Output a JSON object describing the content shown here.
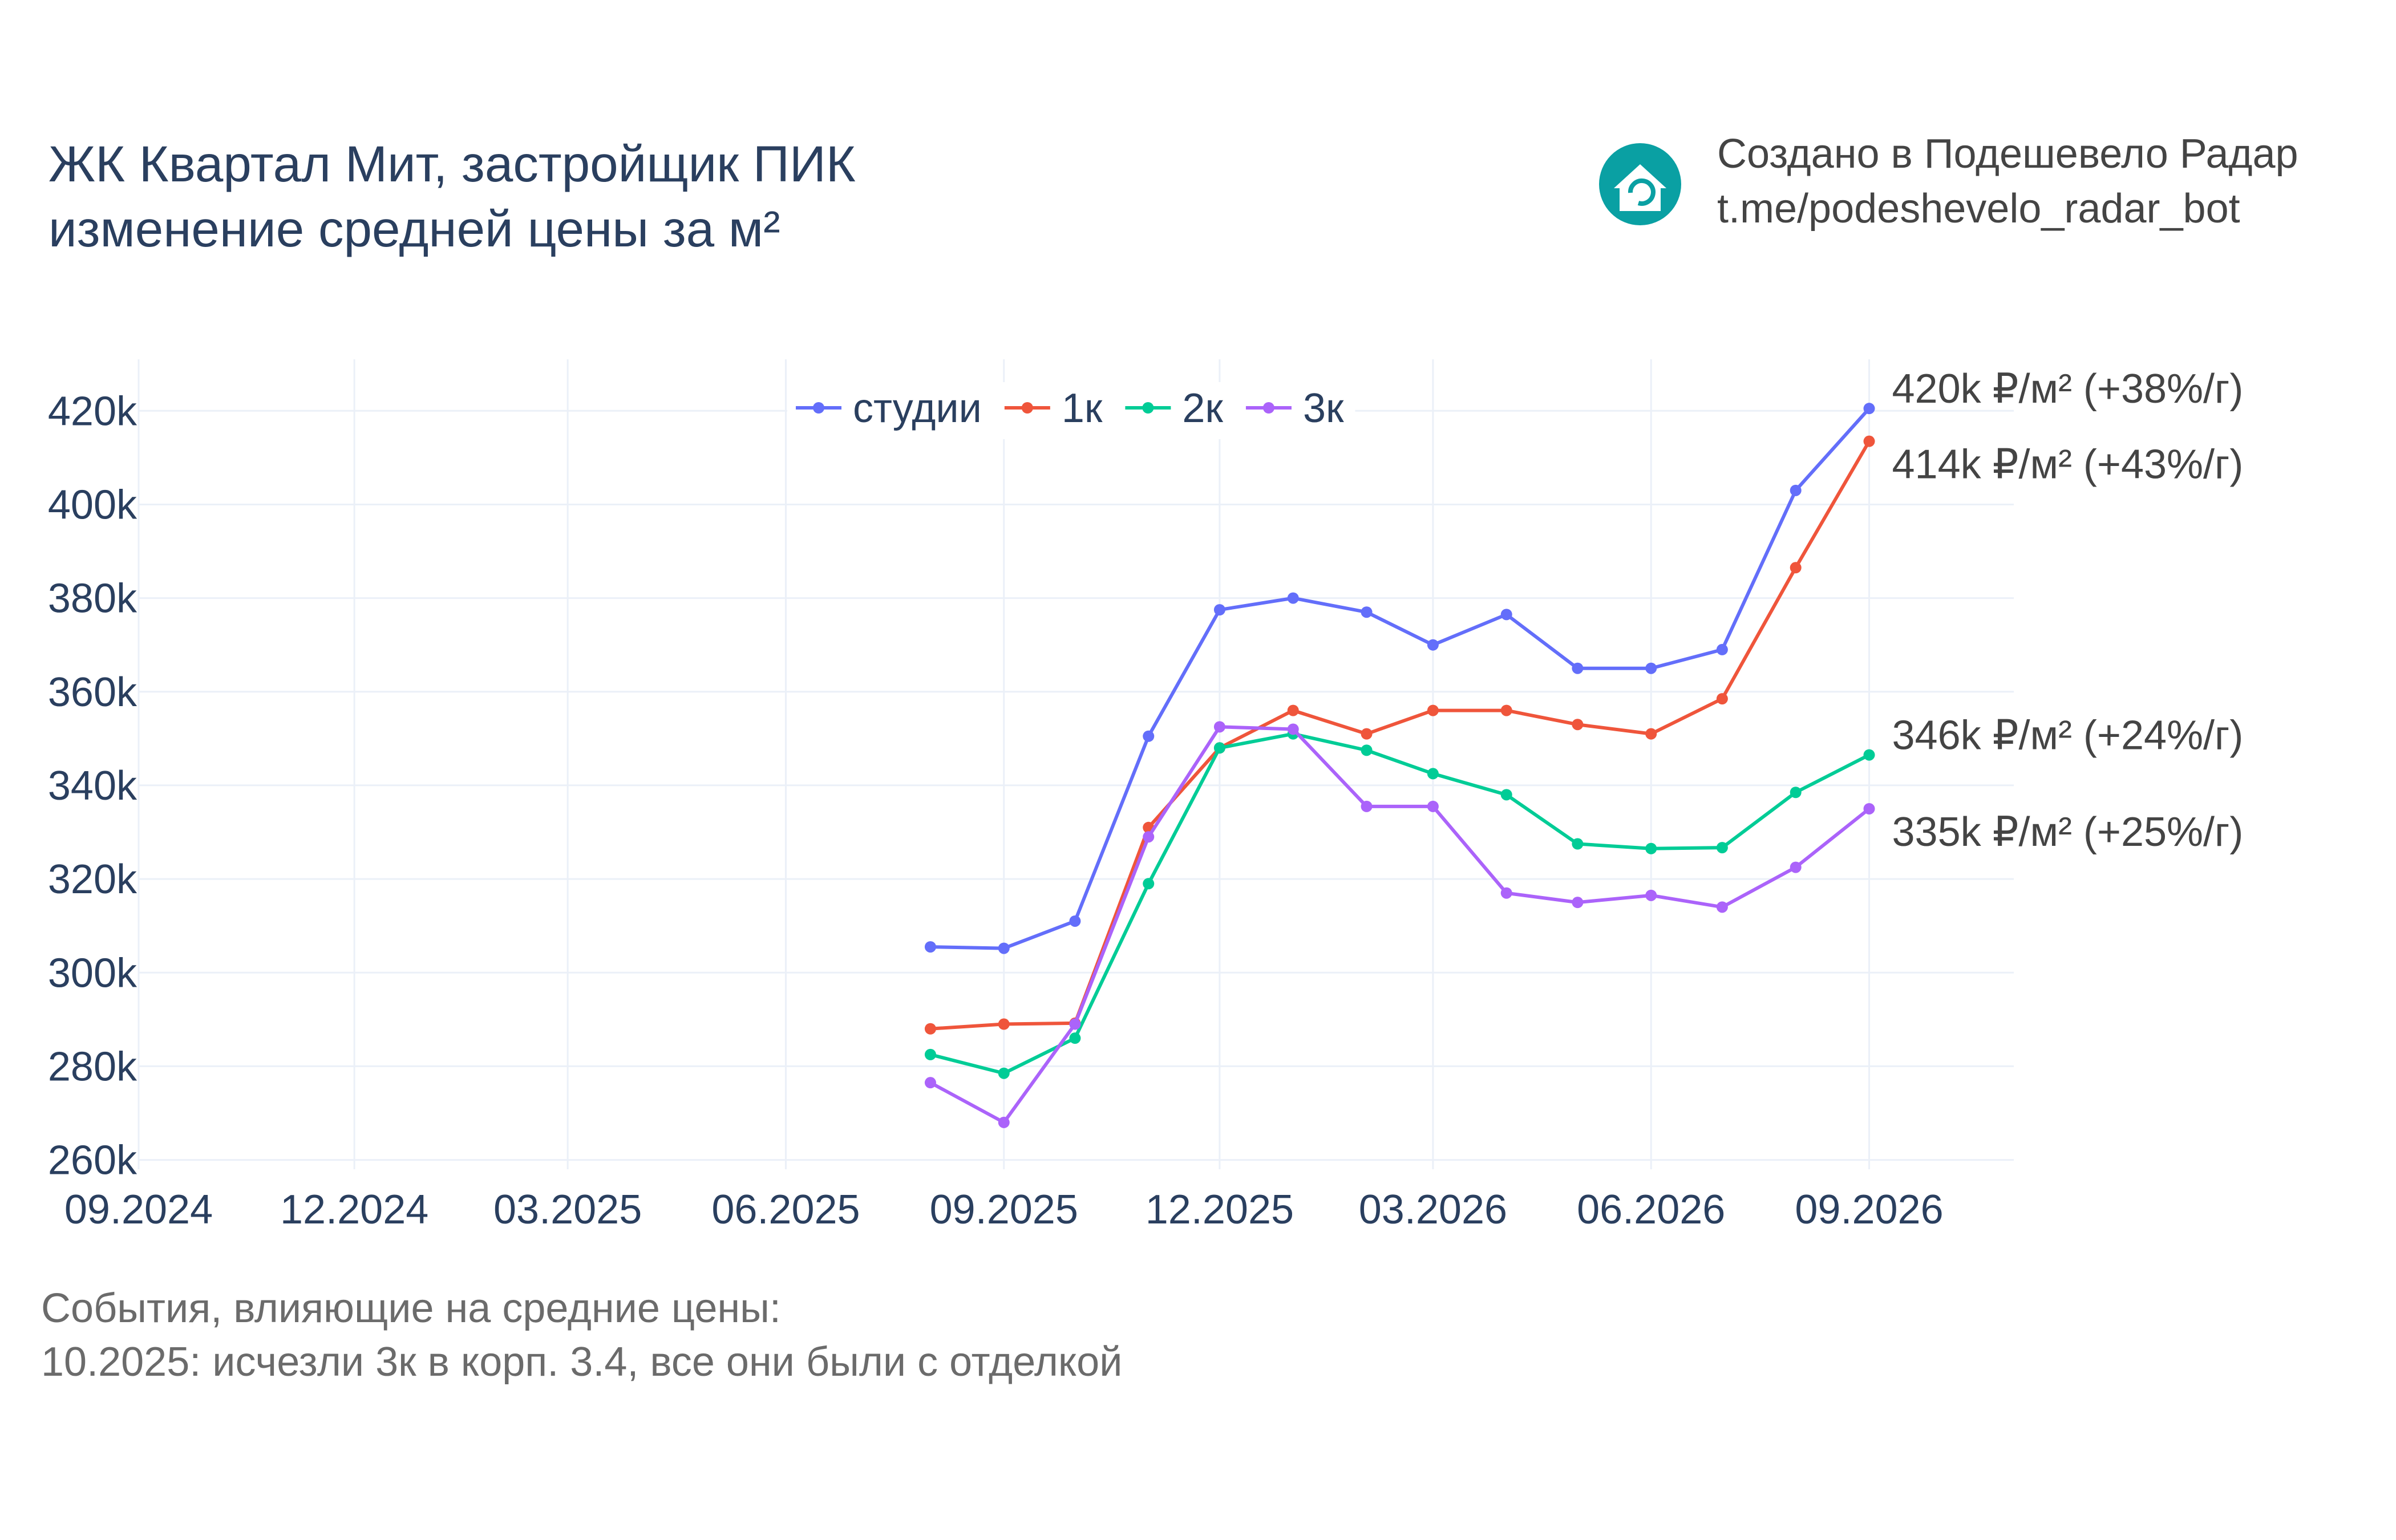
{
  "title": {
    "line1": "ЖК Квартал Мит, застройщик ПИК",
    "line2": "изменение средней цены за м²"
  },
  "branding": {
    "icon": "house-refresh-icon",
    "line1": "Создано в Подешевело Радар",
    "line2": "t.me/podeshevelo_radar_bot",
    "icon_color": "#0aa0a3"
  },
  "notes": {
    "heading": "События, влияющие на средние цены:",
    "event": "10.2025: исчезли 3к в корп. 3.4, все они были с отделкой"
  },
  "chart_data": {
    "type": "line",
    "x_tick_labels": [
      "09.2024",
      "12.2024",
      "03.2025",
      "06.2025",
      "09.2025",
      "12.2025",
      "03.2026",
      "06.2026",
      "09.2026"
    ],
    "y_tick_labels": [
      "260k",
      "280k",
      "300k",
      "320k",
      "340k",
      "360k",
      "380k",
      "400k",
      "420k"
    ],
    "y_ticks": [
      260000,
      280000,
      300000,
      320000,
      340000,
      360000,
      380000,
      400000,
      420000
    ],
    "ylim": [
      258000,
      431000
    ],
    "xlim": [
      "2024-09-01",
      "2026-11-01"
    ],
    "x": [
      "2025-08-01",
      "2025-09-01",
      "2025-10-01",
      "2025-11-01",
      "2025-12-01",
      "2026-01-01",
      "2026-02-01",
      "2026-03-01",
      "2026-04-01",
      "2026-05-01",
      "2026-06-01",
      "2026-07-01",
      "2026-08-01",
      "2026-09-01"
    ],
    "legend_position": "top-center",
    "grid": true,
    "series": [
      {
        "name": "студии",
        "color": "#636efa",
        "values": [
          305500,
          305200,
          311000,
          350500,
          377500,
          380000,
          377000,
          370000,
          376500,
          365000,
          365000,
          369000,
          403000,
          420500
        ],
        "end_label": "420k ₽/м² (+38%/г)"
      },
      {
        "name": "1к",
        "color": "#ef553b",
        "values": [
          288000,
          289000,
          289200,
          331000,
          348000,
          356000,
          351000,
          356000,
          356000,
          353000,
          351000,
          358500,
          386500,
          413500
        ],
        "end_label": "414k ₽/м² (+43%/г)"
      },
      {
        "name": "2к",
        "color": "#00cc96",
        "values": [
          282500,
          278500,
          286000,
          319000,
          348000,
          351000,
          347500,
          342500,
          338000,
          327500,
          326500,
          326700,
          338500,
          346500
        ],
        "end_label": "346k ₽/м² (+24%/г)"
      },
      {
        "name": "3к",
        "color": "#ab63fa",
        "values": [
          276500,
          268000,
          289000,
          329000,
          352500,
          352000,
          335500,
          335500,
          317000,
          315000,
          316500,
          314000,
          322500,
          335000
        ],
        "end_label": "335k ₽/м² (+25%/г)"
      }
    ]
  }
}
